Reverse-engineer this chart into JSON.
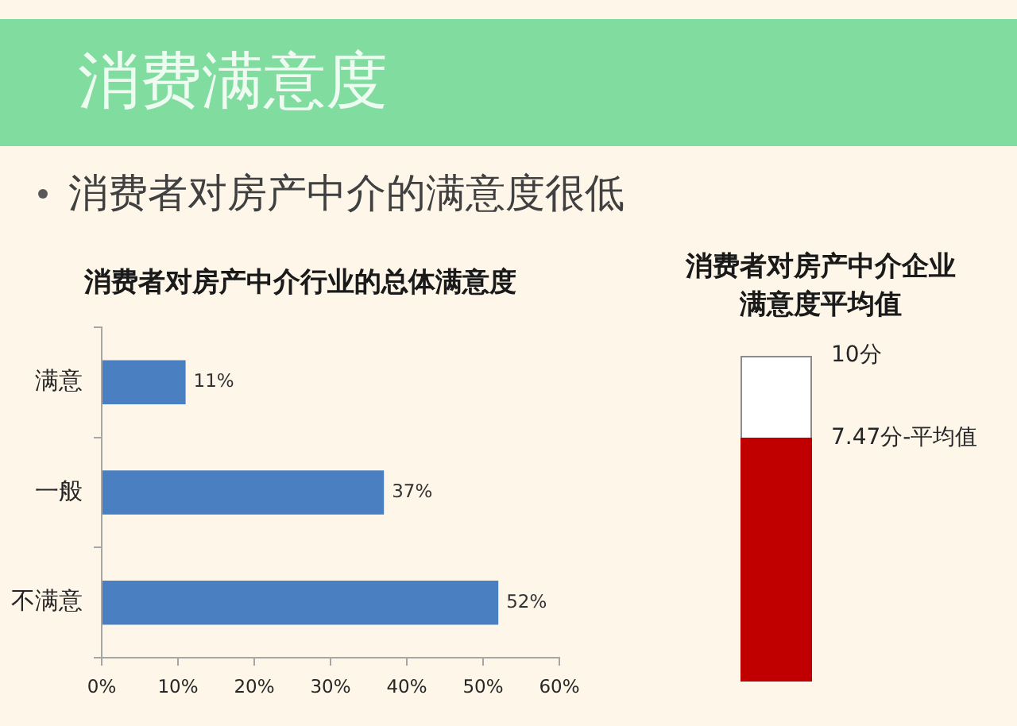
{
  "chart_data": [
    {
      "type": "other",
      "title": "消费满意度",
      "subtitle": "消费者对房产中介的满意度很低"
    },
    {
      "type": "bar",
      "title": "消费者对房产中介行业的总体满意度",
      "orientation": "horizontal",
      "categories": [
        "满意",
        "一般",
        "不满意"
      ],
      "values": [
        11,
        37,
        52
      ],
      "color": "#4a7fc1",
      "value_labels": [
        "11%",
        "37%",
        "52%"
      ],
      "xlim": [
        0,
        60
      ],
      "xticks": [
        {
          "value": 0,
          "label": "0%"
        },
        {
          "value": 10,
          "label": "10%"
        },
        {
          "value": 20,
          "label": "20%"
        },
        {
          "value": 30,
          "label": "30%"
        },
        {
          "value": 40,
          "label": "40%"
        },
        {
          "value": 50,
          "label": "50%"
        },
        {
          "value": 60,
          "label": "60%"
        }
      ]
    },
    {
      "type": "bar",
      "title": "消费者对房产中介企业满意度平均值",
      "categories": [
        null
      ],
      "values": [
        7.47
      ],
      "color": "#c00000",
      "ylim": [
        0,
        10
      ],
      "yticks": [
        {
          "value": 10,
          "label": "10分"
        },
        {
          "value": 7.47,
          "label": "7.47分-平均值"
        }
      ],
      "tick_labels": "y"
    }
  ]
}
